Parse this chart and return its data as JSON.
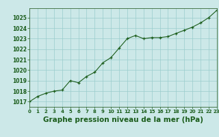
{
  "hours": [
    0,
    1,
    2,
    3,
    4,
    5,
    6,
    7,
    8,
    9,
    10,
    11,
    12,
    13,
    14,
    15,
    16,
    17,
    18,
    19,
    20,
    21,
    22,
    23
  ],
  "pressure": [
    1017.0,
    1017.5,
    1017.8,
    1018.0,
    1018.1,
    1019.0,
    1018.8,
    1019.4,
    1019.8,
    1020.7,
    1021.2,
    1022.1,
    1023.0,
    1023.3,
    1023.0,
    1023.1,
    1023.1,
    1023.2,
    1023.5,
    1023.8,
    1024.1,
    1024.5,
    1025.0,
    1025.7
  ],
  "ylim": [
    1016.5,
    1025.9
  ],
  "yticks": [
    1017,
    1018,
    1019,
    1020,
    1021,
    1022,
    1023,
    1024,
    1025
  ],
  "xlim": [
    0,
    23
  ],
  "xticks": [
    0,
    1,
    2,
    3,
    4,
    5,
    6,
    7,
    8,
    9,
    10,
    11,
    12,
    13,
    14,
    15,
    16,
    17,
    18,
    19,
    20,
    21,
    22,
    23
  ],
  "xlabel": "Graphe pression niveau de la mer (hPa)",
  "line_color": "#1a5c1a",
  "marker": "+",
  "bg_color": "#cce8e8",
  "grid_color": "#99cccc",
  "axis_color": "#336633",
  "tick_color": "#1a5c1a",
  "xlabel_fontsize": 7.5,
  "title_color": "#1a5c1a"
}
